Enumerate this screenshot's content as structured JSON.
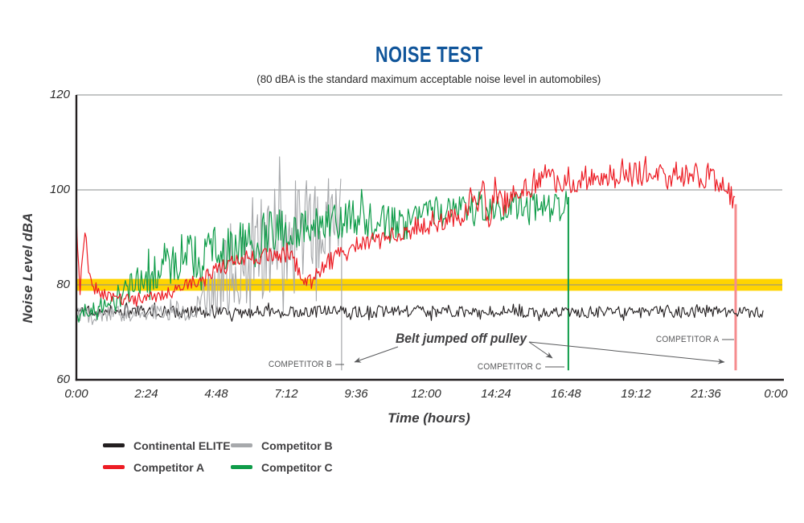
{
  "colors": {
    "title_blue": "#10559A",
    "axis_black": "#231F20",
    "gridline_gray": "#8A8C8E",
    "annotation_gray": "#58595B",
    "threshold_yellow": "#FFD400"
  },
  "chart_data": {
    "type": "line",
    "title": "NOISE TEST",
    "subtitle": "(80 dBA is the standard maximum acceptable noise level in automobiles)",
    "xlabel": "Time (hours)",
    "ylabel": "Noise Level dBA",
    "xlim_hours": [
      0,
      24
    ],
    "ylim": [
      60,
      120
    ],
    "y_ticks": [
      120,
      100,
      80,
      60
    ],
    "gridline_values": [
      120,
      100,
      80
    ],
    "x_ticks": [
      "0:00",
      "2:24",
      "4:48",
      "7:12",
      "9:36",
      "12:00",
      "14:24",
      "16:48",
      "19:12",
      "21:36",
      "0:00"
    ],
    "x_tick_hours": [
      0,
      2.4,
      4.8,
      7.2,
      9.6,
      12,
      14.4,
      16.8,
      19.2,
      21.6,
      24
    ],
    "grid": "horizontal-only",
    "threshold_band": {
      "value": 80,
      "half_width_dba": 1.25,
      "color": "#FFD400",
      "meaning": "standard maximum acceptable noise level"
    },
    "series": [
      {
        "name": "Continental ELITE",
        "color": "#231F20",
        "width": 1.1,
        "seed": 3,
        "end_hour": 23.6,
        "failure_hour": null,
        "mean_anchors": [
          [
            0,
            74.5
          ],
          [
            4,
            74.2
          ],
          [
            12,
            74.4
          ],
          [
            23.6,
            74.2
          ]
        ],
        "noise_anchors": [
          [
            0,
            1.3
          ],
          [
            23.6,
            1.2
          ]
        ]
      },
      {
        "name": "Competitor B",
        "color": "#A7A9AC",
        "width": 1.1,
        "seed": 5,
        "end_hour": 9.1,
        "failure_hour": 9.1,
        "failure_drop_to_dba": 62,
        "drop_line": {
          "color": "#A7A9AC",
          "width": 1.2
        },
        "mean_anchors": [
          [
            0,
            73.5
          ],
          [
            1,
            73.8
          ],
          [
            2,
            74
          ],
          [
            3,
            74.3
          ],
          [
            3.8,
            74.8
          ],
          [
            4.3,
            77
          ],
          [
            4.8,
            81
          ],
          [
            5.3,
            84
          ],
          [
            5.8,
            86.5
          ],
          [
            6.3,
            88
          ],
          [
            6.8,
            89
          ],
          [
            7.4,
            89.5
          ],
          [
            8,
            89
          ],
          [
            8.6,
            90
          ],
          [
            9.1,
            91
          ]
        ],
        "noise_anchors": [
          [
            0,
            1.6
          ],
          [
            3,
            1.8
          ],
          [
            3.9,
            2.4
          ],
          [
            4.4,
            5
          ],
          [
            5,
            8
          ],
          [
            5.6,
            10.5
          ],
          [
            6.2,
            12.5
          ],
          [
            7,
            13
          ],
          [
            8,
            13
          ],
          [
            9.1,
            13.5
          ]
        ]
      },
      {
        "name": "Competitor C",
        "color": "#0F9C49",
        "width": 1.2,
        "seed": 9,
        "end_hour": 16.88,
        "failure_hour": 16.88,
        "failure_drop_to_dba": 62,
        "drop_line": {
          "color": "#0F9C49",
          "width": 2
        },
        "mean_anchors": [
          [
            0,
            73.5
          ],
          [
            0.6,
            74.5
          ],
          [
            1.2,
            76.5
          ],
          [
            1.8,
            79
          ],
          [
            2.4,
            81.5
          ],
          [
            3,
            84
          ],
          [
            3.6,
            85.5
          ],
          [
            4.2,
            86.5
          ],
          [
            5,
            88
          ],
          [
            5.8,
            89.5
          ],
          [
            6.6,
            91
          ],
          [
            7.4,
            92
          ],
          [
            8.2,
            92.5
          ],
          [
            9,
            93.5
          ],
          [
            9.8,
            94.5
          ],
          [
            10.6,
            94
          ],
          [
            11.2,
            92.5
          ],
          [
            11.8,
            95
          ],
          [
            12.4,
            95.5
          ],
          [
            13,
            96
          ],
          [
            13.6,
            96.5
          ],
          [
            14.2,
            95.5
          ],
          [
            14.8,
            96.5
          ],
          [
            15.4,
            96
          ],
          [
            16,
            97
          ],
          [
            16.5,
            97.5
          ],
          [
            16.88,
            98.5
          ]
        ],
        "noise_anchors": [
          [
            0,
            1.5
          ],
          [
            0.8,
            2
          ],
          [
            1.6,
            3
          ],
          [
            2.4,
            4
          ],
          [
            3.2,
            5
          ],
          [
            4,
            5.2
          ],
          [
            6,
            4.8
          ],
          [
            8,
            4.2
          ],
          [
            10,
            3.8
          ],
          [
            12,
            3.4
          ],
          [
            14,
            3.2
          ],
          [
            16.88,
            3
          ]
        ]
      },
      {
        "name": "Competitor A",
        "color": "#ED1C24",
        "width": 1.2,
        "seed": 11,
        "end_hour": 22.62,
        "failure_hour": 22.62,
        "failure_drop_to_dba": 62,
        "drop_line": {
          "color": "#F58C8E",
          "width": 3
        },
        "mean_anchors": [
          [
            0,
            95
          ],
          [
            0.07,
            85
          ],
          [
            0.13,
            79
          ],
          [
            0.3,
            91
          ],
          [
            0.42,
            83
          ],
          [
            0.55,
            78.5
          ],
          [
            1,
            78
          ],
          [
            1.6,
            77
          ],
          [
            2.2,
            76.5
          ],
          [
            2.8,
            77.5
          ],
          [
            3.4,
            79
          ],
          [
            4,
            80.5
          ],
          [
            4.6,
            82.5
          ],
          [
            5.2,
            84.5
          ],
          [
            5.8,
            85.5
          ],
          [
            6.4,
            86
          ],
          [
            7,
            86.5
          ],
          [
            7.5,
            85.5
          ],
          [
            7.75,
            81
          ],
          [
            7.9,
            79.5
          ],
          [
            8.1,
            81
          ],
          [
            8.5,
            84
          ],
          [
            9,
            86.5
          ],
          [
            9.6,
            88
          ],
          [
            10.4,
            89.5
          ],
          [
            11.2,
            91
          ],
          [
            12,
            92.5
          ],
          [
            12.8,
            94
          ],
          [
            13.4,
            95
          ],
          [
            13.55,
            101
          ],
          [
            13.75,
            95
          ],
          [
            13.95,
            101
          ],
          [
            14.15,
            90
          ],
          [
            14.35,
            100
          ],
          [
            14.6,
            96
          ],
          [
            15,
            100.5
          ],
          [
            15.5,
            101
          ],
          [
            16.5,
            102
          ],
          [
            17.5,
            102.5
          ],
          [
            18.5,
            103
          ],
          [
            19.5,
            103.5
          ],
          [
            20.5,
            103.5
          ],
          [
            21.5,
            103
          ],
          [
            22.1,
            102
          ],
          [
            22.45,
            99
          ],
          [
            22.62,
            97
          ]
        ],
        "noise_anchors": [
          [
            0,
            2
          ],
          [
            1,
            1.2
          ],
          [
            3,
            1.2
          ],
          [
            5,
            1.5
          ],
          [
            7,
            1.8
          ],
          [
            9,
            2
          ],
          [
            12,
            2.2
          ],
          [
            13.4,
            2.2
          ],
          [
            14,
            3
          ],
          [
            15,
            2.8
          ],
          [
            18,
            2.6
          ],
          [
            22.62,
            2.6
          ]
        ]
      }
    ],
    "annotations": {
      "note": "Belt jumped off pulley",
      "callouts": [
        {
          "label": "COMPETITOR B",
          "series": "Competitor B",
          "failure_hour": 9.1
        },
        {
          "label": "COMPETITOR C",
          "series": "Competitor C",
          "failure_hour": 16.88
        },
        {
          "label": "COMPETITOR A",
          "series": "Competitor A",
          "failure_hour": 22.62
        }
      ]
    },
    "legend": {
      "position": "bottom-left",
      "entries": [
        {
          "label": "Continental ELITE",
          "color": "#231F20"
        },
        {
          "label": "Competitor A",
          "color": "#ED1C24"
        },
        {
          "label": "Competitor B",
          "color": "#A7A9AC"
        },
        {
          "label": "Competitor C",
          "color": "#0F9C49"
        }
      ]
    }
  }
}
